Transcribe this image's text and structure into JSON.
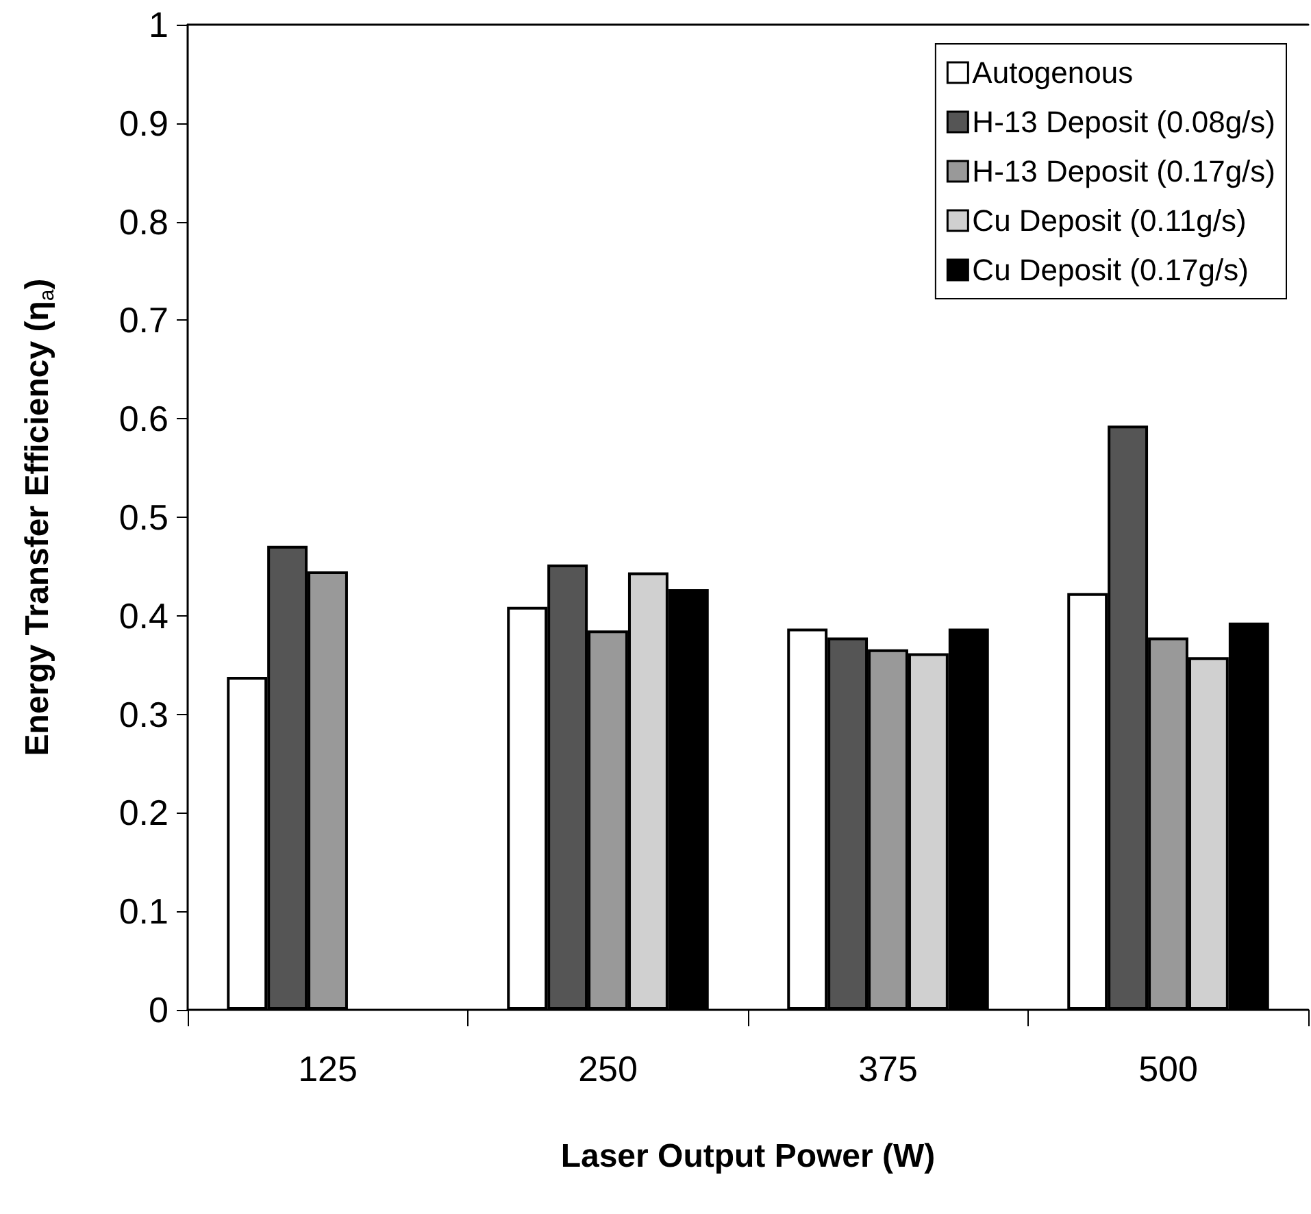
{
  "chart_data": {
    "type": "bar",
    "xlabel": "Laser Output Power (W)",
    "ylabel": "Energy Transfer Efficiency (η$_{a}$)",
    "categories": [
      "125",
      "250",
      "375",
      "500"
    ],
    "series": [
      {
        "name": "Autogenous",
        "color": "#ffffff",
        "values": [
          0.338,
          0.409,
          0.387,
          0.423
        ]
      },
      {
        "name": "H-13 Deposit (0.08g/s)",
        "color": "#555555",
        "values": [
          0.471,
          0.452,
          0.378,
          0.593
        ]
      },
      {
        "name": "H-13 Deposit (0.17g/s)",
        "color": "#999999",
        "values": [
          0.445,
          0.385,
          0.366,
          0.378
        ]
      },
      {
        "name": "Cu Deposit (0.11g/s)",
        "color": "#d0d0d0",
        "values": [
          null,
          0.444,
          0.362,
          0.358
        ]
      },
      {
        "name": "Cu Deposit (0.17g/s)",
        "color": "#000000",
        "values": [
          null,
          0.427,
          0.387,
          0.393
        ]
      }
    ],
    "ylim": [
      0,
      1
    ],
    "yticks": [
      0,
      0.1,
      0.2,
      0.3,
      0.4,
      0.5,
      0.6,
      0.7,
      0.8,
      0.9,
      1
    ],
    "grid": false,
    "legend": "top right"
  }
}
